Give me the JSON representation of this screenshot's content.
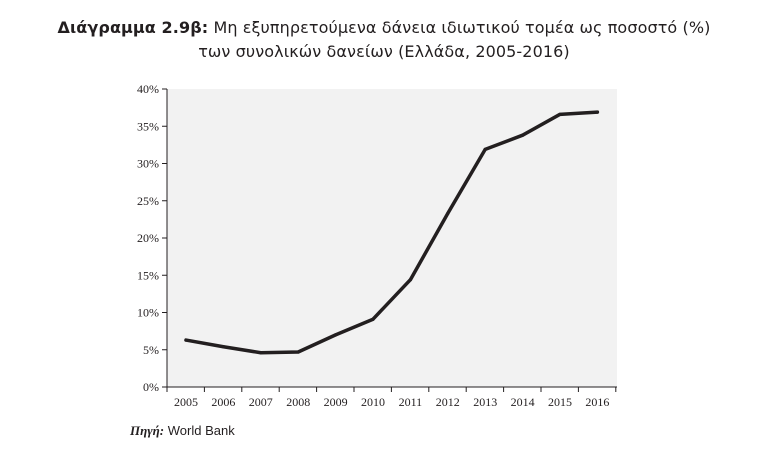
{
  "figure": {
    "title_lead": "Διάγραμμα 2.9β:",
    "title_line1": "Μη εξυπηρετούμενα δάνεια ιδιωτικού τομέα ως ποσοστό (%)",
    "title_line2": "των συνολικών δανείων (Ελλάδα, 2005-2016)",
    "source_label": "Πηγή",
    "source_value": "World Bank"
  },
  "colors": {
    "plot_background": "#f2f2f2",
    "line": "#231f20"
  },
  "chart_data": {
    "type": "line",
    "title": "Μη εξυπηρετούμενα δάνεια ιδιωτικού τομέα ως ποσοστό (%) των συνολικών δανείων (Ελλάδα, 2005-2016)",
    "xlabel": "",
    "ylabel": "",
    "categories": [
      "2005",
      "2006",
      "2007",
      "2008",
      "2009",
      "2010",
      "2011",
      "2012",
      "2013",
      "2014",
      "2015",
      "2016"
    ],
    "series": [
      {
        "values": [
          6.3,
          5.4,
          4.6,
          4.7,
          7.0,
          9.1,
          14.4,
          23.3,
          31.9,
          33.8,
          36.6,
          36.9
        ]
      }
    ],
    "ylim": [
      0,
      40
    ],
    "yticks": [
      0,
      5,
      10,
      15,
      20,
      25,
      30,
      35,
      40
    ],
    "ytick_labels": [
      "0%",
      "5%",
      "10%",
      "15%",
      "20%",
      "25%",
      "30%",
      "35%",
      "40%"
    ],
    "grid": false,
    "legend": "none"
  }
}
